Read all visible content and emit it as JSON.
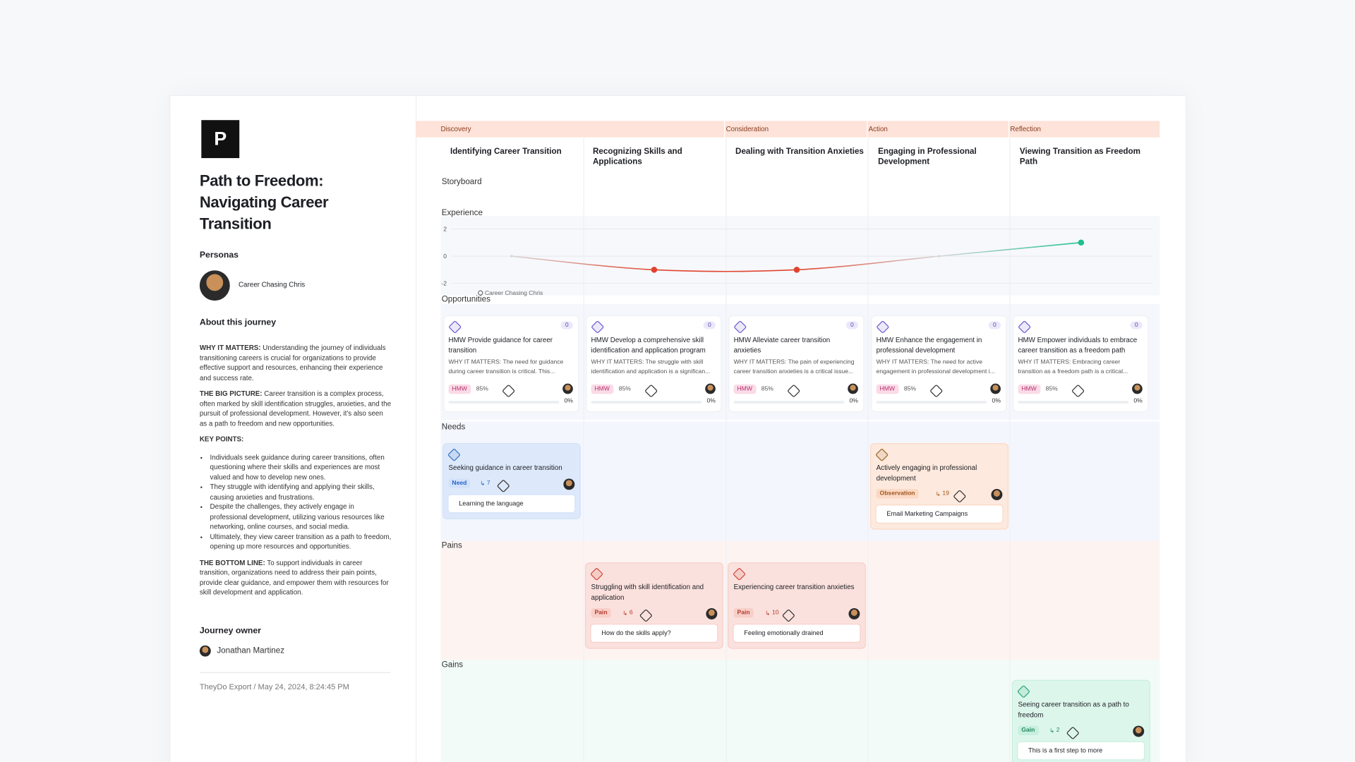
{
  "journey": {
    "logo": "P",
    "title": "Path to Freedom: Navigating Career Transition",
    "personas_label": "Personas",
    "persona": "Career Chasing Chris",
    "about_label": "About this journey",
    "why": {
      "label": "WHY IT MATTERS:",
      "text": "Understanding the journey of individuals transitioning careers is crucial for organizations to provide effective support and resources, enhancing their experience and success rate."
    },
    "big": {
      "label": "THE BIG PICTURE:",
      "text": "Career transition is a complex process, often marked by skill identification struggles, anxieties, and the pursuit of professional development. However, it's also seen as a path to freedom and new opportunities."
    },
    "key_points_label": "KEY POINTS:",
    "key_points": [
      "Individuals seek guidance during career transitions, often questioning where their skills and experiences are most valued and how to develop new ones.",
      "They struggle with identifying and applying their skills, causing anxieties and frustrations.",
      "Despite the challenges, they actively engage in professional development, utilizing various resources like networking, online courses, and social media.",
      "Ultimately, they view career transition as a path to freedom, opening up more resources and opportunities."
    ],
    "bottom": {
      "label": "THE BOTTOM LINE:",
      "text": "To support individuals in career transition, organizations need to address their pain points, provide clear guidance, and empower them with resources for skill development and application."
    },
    "owner_label": "Journey owner",
    "owner": "Jonathan Martinez",
    "export": "TheyDo Export / May 24, 2024, 8:24:45 PM"
  },
  "phases": [
    {
      "name": "Discovery",
      "stages": [
        "Identifying Career Transition",
        "Recognizing Skills and Applications"
      ]
    },
    {
      "name": "Consideration",
      "stages": [
        "Dealing with Transition Anxieties"
      ]
    },
    {
      "name": "Action",
      "stages": [
        "Engaging in Professional Development"
      ]
    },
    {
      "name": "Reflection",
      "stages": [
        "Viewing Transition as Freedom Path"
      ]
    }
  ],
  "lanes": {
    "storyboard": "Storyboard",
    "opportunities": "Opportunities",
    "needs": "Needs",
    "pains": "Pains",
    "gains": "Gains"
  },
  "chart_data": {
    "type": "line",
    "title": "Experience",
    "series": [
      {
        "name": "Career Chasing Chris",
        "values": [
          0,
          -1,
          -1,
          0,
          1
        ]
      }
    ],
    "ylim": [
      -2,
      2
    ],
    "yticks": [
      -2,
      0,
      2
    ],
    "grid": true,
    "negative_color": "#e0442e",
    "positive_color": "#1fbf8f",
    "neutral_color": "#d8d8d8"
  },
  "opportunities": [
    {
      "title": "HMW Provide guidance for career transition",
      "text": "WHY IT MATTERS: The need for guidance during career transition is critical. This...",
      "tag": "HMW",
      "count": "0",
      "score": "85%",
      "progress": "0%"
    },
    {
      "title": "HMW Develop a comprehensive skill identification and application program",
      "text": "WHY IT MATTERS: The struggle with skill identification and application is a significan...",
      "tag": "HMW",
      "count": "0",
      "score": "85%",
      "progress": "0%"
    },
    {
      "title": "HMW Alleviate career transition anxieties",
      "text": "WHY IT MATTERS: The pain of experiencing career transition anxieties is a critical issue...",
      "tag": "HMW",
      "count": "0",
      "score": "85%",
      "progress": "0%"
    },
    {
      "title": "HMW Enhance the engagement in professional development",
      "text": "WHY IT MATTERS: The need for active engagement in professional development i...",
      "tag": "HMW",
      "count": "0",
      "score": "85%",
      "progress": "0%"
    },
    {
      "title": "HMW Empower individuals to embrace career transition as a freedom path",
      "text": "WHY IT MATTERS: Embracing career transition as a freedom path is a critical...",
      "tag": "HMW",
      "count": "0",
      "score": "85%",
      "progress": "0%"
    }
  ],
  "needs": [
    {
      "title": "Seeking guidance in career transition",
      "tag": "Need",
      "count": "7",
      "insight": "Learning the language"
    },
    null,
    null,
    {
      "title": "Actively engaging in professional development",
      "tag": "Observation",
      "count": "19",
      "insight": "Email Marketing Campaigns"
    },
    null
  ],
  "pains": [
    null,
    {
      "title": "Struggling with skill identification and application",
      "tag": "Pain",
      "count": "6",
      "insight": "How do the skills apply?"
    },
    {
      "title": "Experiencing career transition anxieties",
      "tag": "Pain",
      "count": "10",
      "insight": "Feeling emotionally drained"
    },
    null,
    null
  ],
  "gains": [
    null,
    null,
    null,
    null,
    {
      "title": "Seeing career transition as a path to freedom",
      "tag": "Gain",
      "count": "2",
      "insight": "This is a first step to more"
    }
  ]
}
